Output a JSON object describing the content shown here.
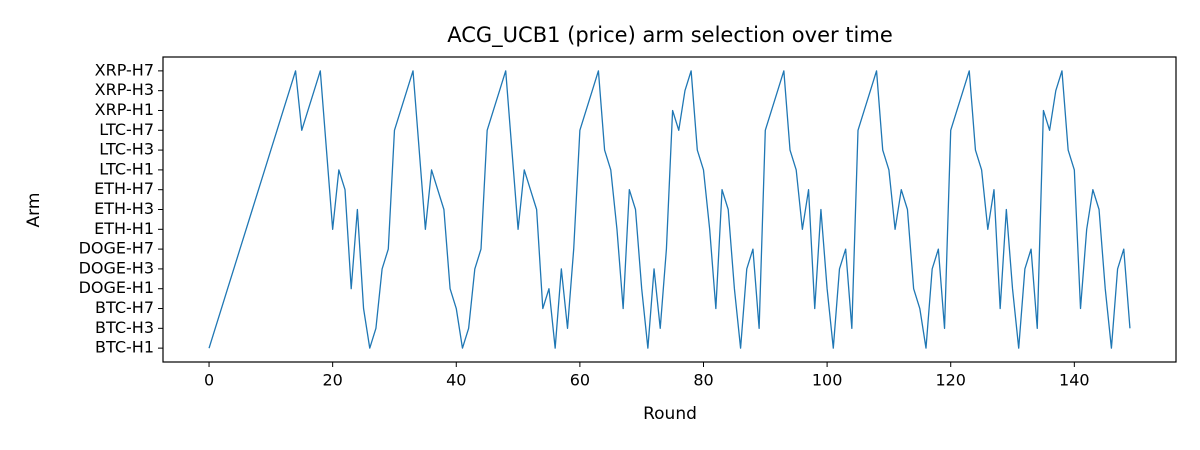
{
  "chart_data": {
    "type": "line",
    "title": "ACG_UCB1 (price) arm selection over time",
    "x_label": "Round",
    "y_label": "Arm",
    "color": "#1f77b4",
    "x": [
      0,
      1,
      2,
      3,
      4,
      5,
      6,
      7,
      8,
      9,
      10,
      11,
      12,
      13,
      14,
      15,
      16,
      17,
      18,
      19,
      20,
      21,
      22,
      23,
      24,
      25,
      26,
      27,
      28,
      29,
      30,
      31,
      32,
      33,
      34,
      35,
      36,
      37,
      38,
      39,
      40,
      41,
      42,
      43,
      44,
      45,
      46,
      47,
      48,
      49,
      50,
      51,
      52,
      53,
      54,
      55,
      56,
      57,
      58,
      59,
      60,
      61,
      62,
      63,
      64,
      65,
      66,
      67,
      68,
      69,
      70,
      71,
      72,
      73,
      74,
      75,
      76,
      77,
      78,
      79,
      80,
      81,
      82,
      83,
      84,
      85,
      86,
      87,
      88,
      89,
      90,
      91,
      92,
      93,
      94,
      95,
      96,
      97,
      98,
      99,
      100,
      101,
      102,
      103,
      104,
      105,
      106,
      107,
      108,
      109,
      110,
      111,
      112,
      113,
      114,
      115,
      116,
      117,
      118,
      119,
      120,
      121,
      122,
      123,
      124,
      125,
      126,
      127,
      128,
      129,
      130,
      131,
      132,
      133,
      134,
      135,
      136,
      137,
      138,
      139,
      140,
      141,
      142,
      143,
      144,
      145,
      146,
      147,
      148,
      149
    ],
    "values": [
      0,
      1,
      2,
      3,
      4,
      5,
      6,
      7,
      8,
      9,
      10,
      11,
      12,
      13,
      14,
      11,
      12,
      13,
      14,
      10,
      6,
      9,
      8,
      3,
      7,
      2,
      0,
      1,
      4,
      5,
      11,
      12,
      13,
      14,
      10,
      6,
      9,
      8,
      7,
      3,
      2,
      0,
      1,
      4,
      5,
      11,
      12,
      13,
      14,
      10,
      6,
      9,
      8,
      7,
      2,
      3,
      0,
      4,
      1,
      5,
      11,
      12,
      13,
      14,
      10,
      9,
      6,
      2,
      8,
      7,
      3,
      0,
      4,
      1,
      5,
      12,
      11,
      13,
      14,
      10,
      9,
      6,
      2,
      8,
      7,
      3,
      0,
      4,
      5,
      1,
      11,
      12,
      13,
      14,
      10,
      9,
      6,
      8,
      2,
      7,
      3,
      0,
      4,
      5,
      1,
      11,
      12,
      13,
      14,
      10,
      9,
      6,
      8,
      7,
      3,
      2,
      0,
      4,
      5,
      1,
      11,
      12,
      13,
      14,
      10,
      9,
      6,
      8,
      2,
      7,
      3,
      0,
      4,
      5,
      1,
      12,
      11,
      13,
      14,
      10,
      9,
      2,
      6,
      8,
      7,
      3,
      0,
      4,
      5,
      1
    ],
    "xlim": [
      -7.45,
      156.45
    ],
    "xticks": [
      0,
      20,
      40,
      60,
      80,
      100,
      120,
      140
    ],
    "ylim": [
      -0.7,
      14.7
    ],
    "yticks": [
      {
        "value": 0,
        "label": "BTC-H1"
      },
      {
        "value": 1,
        "label": "BTC-H3"
      },
      {
        "value": 2,
        "label": "BTC-H7"
      },
      {
        "value": 3,
        "label": "DOGE-H1"
      },
      {
        "value": 4,
        "label": "DOGE-H3"
      },
      {
        "value": 5,
        "label": "DOGE-H7"
      },
      {
        "value": 6,
        "label": "ETH-H1"
      },
      {
        "value": 7,
        "label": "ETH-H3"
      },
      {
        "value": 8,
        "label": "ETH-H7"
      },
      {
        "value": 9,
        "label": "LTC-H1"
      },
      {
        "value": 10,
        "label": "LTC-H3"
      },
      {
        "value": 11,
        "label": "LTC-H7"
      },
      {
        "value": 12,
        "label": "XRP-H1"
      },
      {
        "value": 13,
        "label": "XRP-H3"
      },
      {
        "value": 14,
        "label": "XRP-H7"
      }
    ]
  }
}
